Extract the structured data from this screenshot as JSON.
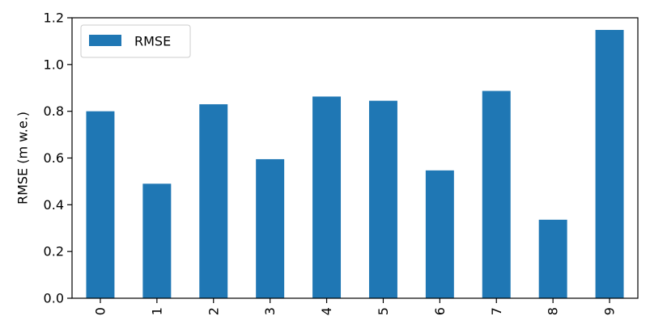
{
  "chart_data": {
    "type": "bar",
    "title": "",
    "xlabel": "",
    "ylabel": "RMSE (m w.e.)",
    "categories": [
      "0",
      "1",
      "2",
      "3",
      "4",
      "5",
      "6",
      "7",
      "8",
      "9"
    ],
    "series": [
      {
        "name": "RMSE",
        "color": "#1f77b4",
        "values": [
          0.8,
          0.49,
          0.83,
          0.595,
          0.863,
          0.845,
          0.547,
          0.887,
          0.336,
          1.148
        ]
      }
    ],
    "ylim": [
      0,
      1.2
    ],
    "yticks": [
      "0.0",
      "0.2",
      "0.4",
      "0.6",
      "0.8",
      "1.0",
      "1.2"
    ],
    "grid": false,
    "legend": "top-left"
  }
}
